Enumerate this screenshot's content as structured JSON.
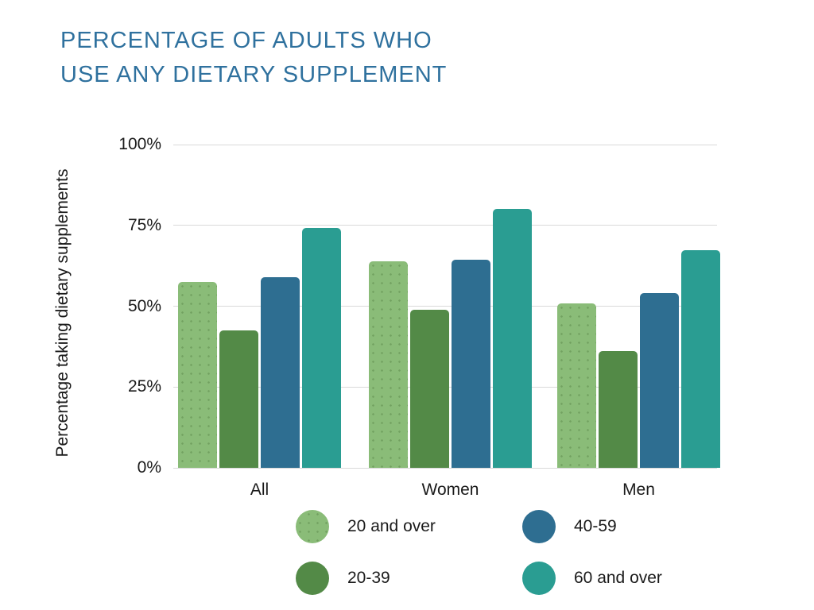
{
  "page": {
    "background": "#ffffff"
  },
  "title": {
    "line1": "PERCENTAGE OF ADULTS WHO",
    "line2": "USE ANY DIETARY SUPPLEMENT",
    "color": "#2f719e"
  },
  "axis": {
    "gridline_color": "#d9d9d9",
    "text_color": "#1a1a1a"
  },
  "chart_data": {
    "type": "bar",
    "title": "PERCENTAGE OF ADULTS WHO USE ANY DIETARY SUPPLEMENT",
    "xlabel": "",
    "ylabel": "Percentage taking dietary supplements",
    "categories": [
      "All",
      "Women",
      "Men"
    ],
    "series": [
      {
        "name": "20 and over",
        "color": "#8abc78",
        "texture": "dots",
        "values": [
          57.6,
          63.8,
          50.8
        ]
      },
      {
        "name": "20-39",
        "color": "#538a47",
        "texture": "solid",
        "values": [
          42.4,
          49.0,
          36.0
        ]
      },
      {
        "name": "40-59",
        "color": "#2e6e91",
        "texture": "solid",
        "values": [
          59.0,
          64.5,
          54.0
        ]
      },
      {
        "name": "60 and over",
        "color": "#2a9d92",
        "texture": "solid",
        "values": [
          74.3,
          80.2,
          67.3
        ]
      }
    ],
    "ylim": [
      0,
      100
    ],
    "ytick_step": 25,
    "yticks": [
      "0%",
      "25%",
      "50%",
      "75%",
      "100%"
    ],
    "grid": "horizontal",
    "legend_position": "bottom",
    "legend_order": [
      "20 and over",
      "40-59",
      "20-39",
      "60 and over"
    ]
  }
}
